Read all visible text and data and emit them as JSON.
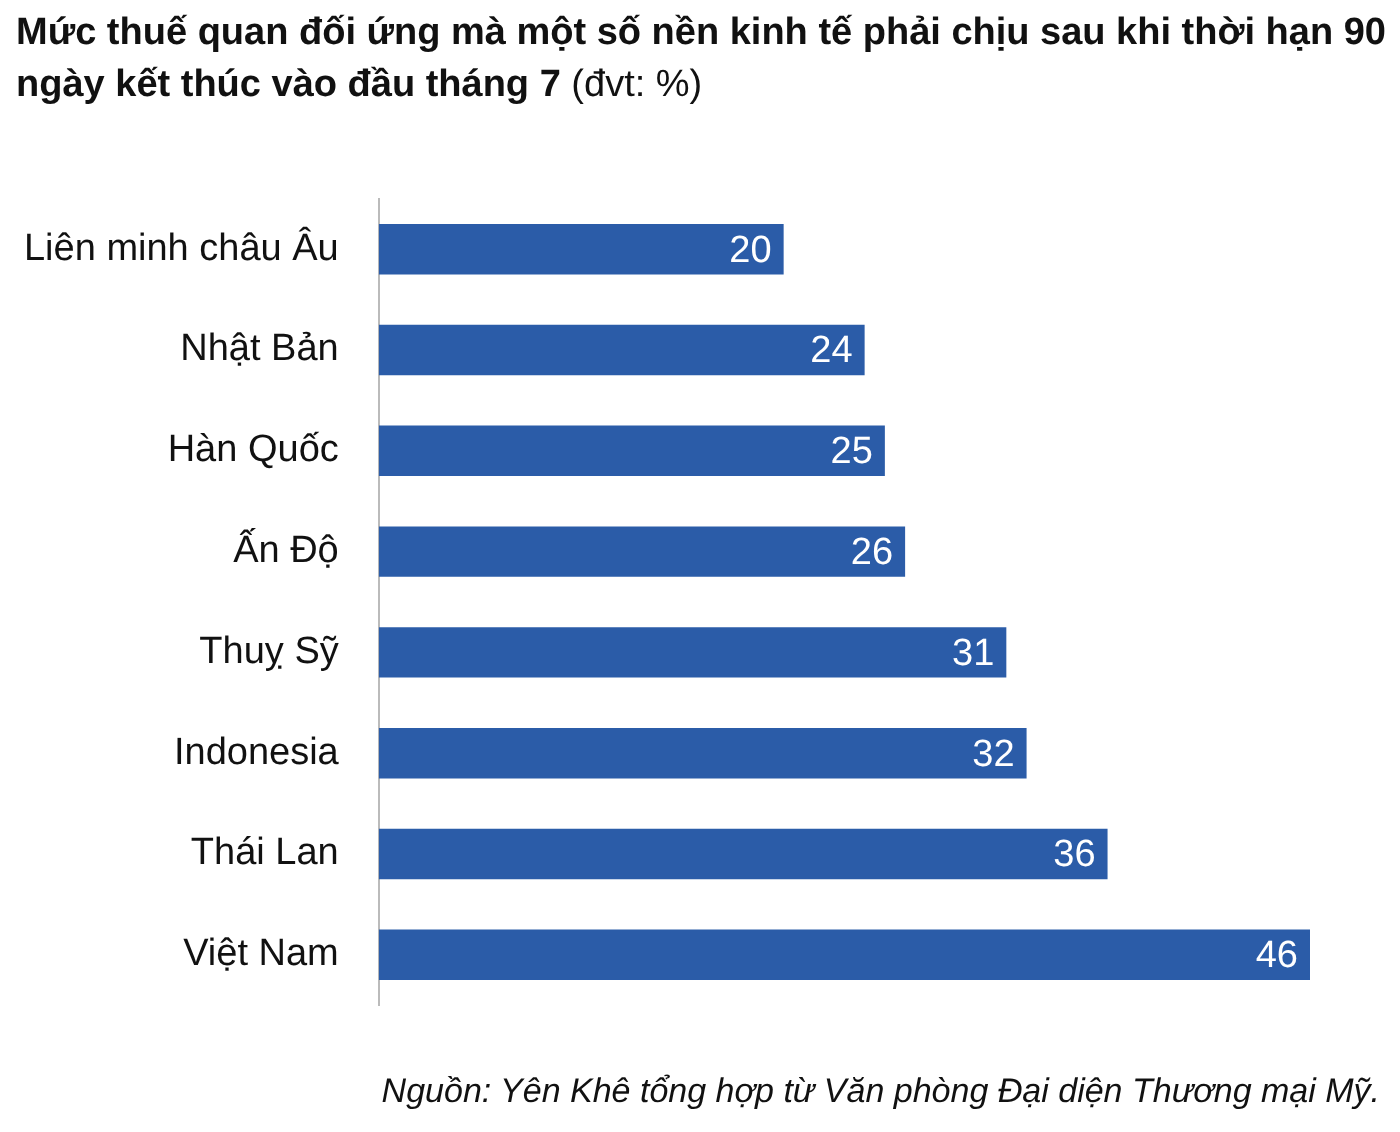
{
  "chart_data": {
    "type": "bar",
    "orientation": "horizontal",
    "title": "Mức thuế quan đối ứng mà một số nền kinh tế phải chịu sau khi thời hạn 90 ngày kết thúc vào đầu tháng 7",
    "subtitle": "(đvt: %)",
    "categories": [
      "Liên minh châu Âu",
      "Nhật Bản",
      "Hàn Quốc",
      "Ấn Độ",
      "Thuỵ Sỹ",
      "Indonesia",
      "Thái Lan",
      "Việt Nam"
    ],
    "values": [
      20,
      24,
      25,
      26,
      31,
      32,
      36,
      46
    ],
    "color": "#2b5ca8",
    "data_labels": true,
    "grid": false,
    "legend": false,
    "annotations": [
      "Nguồn: Yên Khê tổng hợp từ Văn phòng Đại diện Thương mại Mỹ."
    ]
  }
}
